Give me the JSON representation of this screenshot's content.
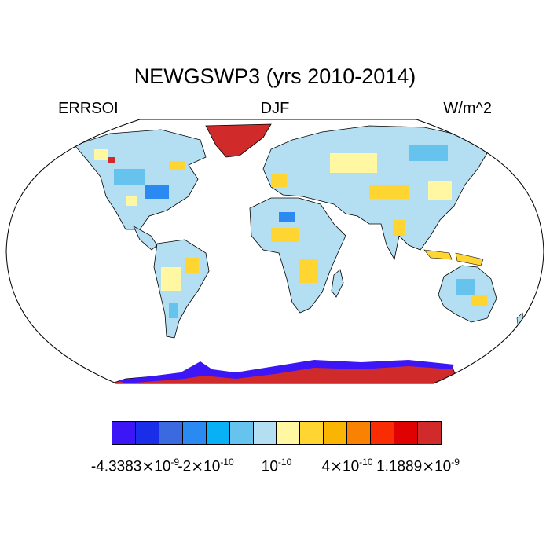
{
  "title": "NEWGSWP3 (yrs 2010-2014)",
  "left_string": "ERRSOI",
  "center_string": "DJF",
  "right_string": "W/m^2",
  "colorbar": {
    "colors": [
      "#3d16f7",
      "#1a2de8",
      "#3b6ae0",
      "#2a8af2",
      "#08b1f5",
      "#66c3ee",
      "#b4def2",
      "#fff7a2",
      "#ffd531",
      "#fab503",
      "#fa8202",
      "#fa2c03",
      "#e00202",
      "#d02a2a"
    ],
    "labels": [
      {
        "mantissa": "-4.3383",
        "times": "×",
        "exp": "-9"
      },
      {
        "mantissa": "-2",
        "times": "×",
        "exp": "-10"
      },
      {
        "mantissa": "",
        "times": "",
        "exp": "-10"
      },
      {
        "mantissa": "4",
        "times": "×",
        "exp": "-10"
      },
      {
        "mantissa": "1.1889",
        "times": "×",
        "exp": "-9"
      }
    ]
  }
}
